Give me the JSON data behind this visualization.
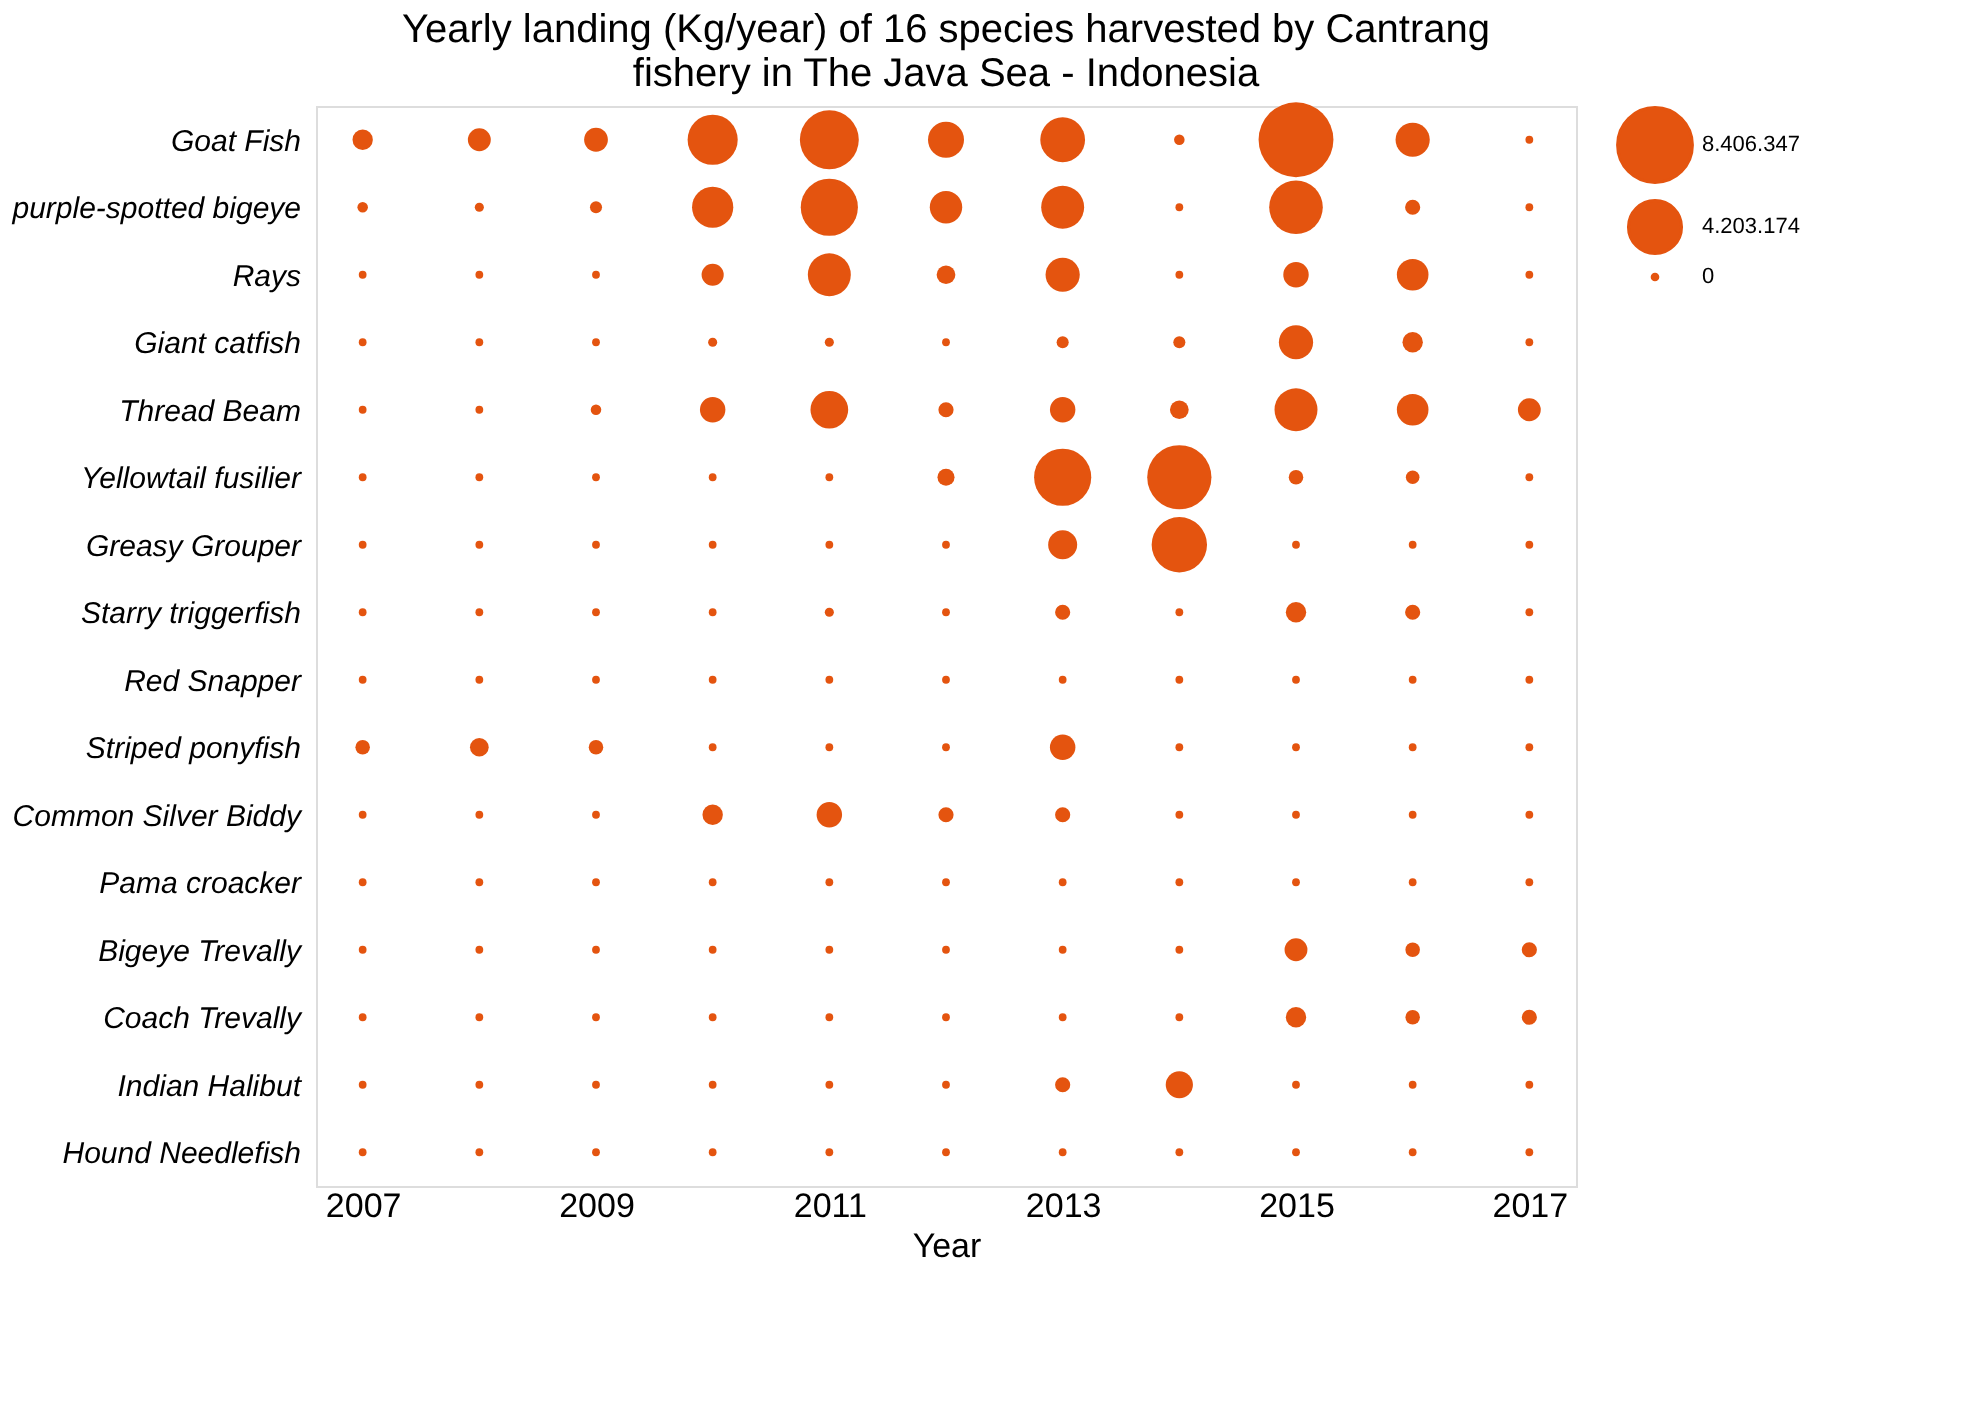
{
  "chart_data": {
    "type": "bubble",
    "title": [
      "Yearly landing (Kg/year) of 16 species harvested by Cantrang",
      "fishery in The Java Sea - Indonesia"
    ],
    "xlabel": "Year",
    "orientation": "horizontal",
    "categories": [
      "Goat Fish",
      "purple-spotted bigeye",
      "Rays",
      "Giant catfish",
      "Thread Beam",
      "Yellowtail fusilier",
      "Greasy Grouper",
      "Starry triggerfish",
      "Red Snapper",
      "Striped ponyfish",
      "Common Silver Biddy",
      "Pama croacker",
      "Bigeye Trevally",
      "Coach Trevally",
      "Indian Halibut",
      "Hound Needlefish"
    ],
    "xlim": [
      2006.6,
      2017.4
    ],
    "xticks": [
      2007,
      2009,
      2011,
      2013,
      2015,
      2017
    ],
    "size_legend": [
      {
        "value": 8406347,
        "label": "8.406.347"
      },
      {
        "value": 4203174,
        "label": "4.203.174"
      },
      {
        "value": 0,
        "label": "0"
      }
    ],
    "grid": false,
    "series": [
      {
        "color": "#e4540f",
        "values": [
          2007,
          2007,
          2007,
          2007,
          2007,
          2007,
          2007,
          2007,
          2007,
          2007,
          2007,
          2007,
          2007,
          2007,
          2007,
          2007
        ],
        "sizes": [
          577000,
          119000,
          43000,
          43000,
          43000,
          43000,
          43000,
          43000,
          43000,
          270000,
          43000,
          43000,
          43000,
          43000,
          43000,
          43000
        ]
      },
      {
        "color": "#e4540f",
        "values": [
          2008,
          2008,
          2008,
          2008,
          2008,
          2008,
          2008,
          2008,
          2008,
          2008,
          2008,
          2008,
          2008,
          2008,
          2008,
          2008
        ],
        "sizes": [
          745000,
          76000,
          43000,
          43000,
          43000,
          43000,
          43000,
          43000,
          43000,
          480000,
          43000,
          43000,
          43000,
          43000,
          43000,
          43000
        ]
      },
      {
        "color": "#e4540f",
        "values": [
          2009,
          2009,
          2009,
          2009,
          2009,
          2009,
          2009,
          2009,
          2009,
          2009,
          2009,
          2009,
          2009,
          2009,
          2009,
          2009
        ],
        "sizes": [
          805000,
          172000,
          43000,
          43000,
          119000,
          43000,
          43000,
          43000,
          43000,
          270000,
          43000,
          43000,
          43000,
          43000,
          43000,
          43000
        ]
      },
      {
        "color": "#e4540f",
        "values": [
          2010,
          2010,
          2010,
          2010,
          2010,
          2010,
          2010,
          2010,
          2010,
          2010,
          2010,
          2010,
          2010,
          2010,
          2010,
          2010
        ],
        "sizes": [
          3740000,
          2520000,
          690000,
          76000,
          930000,
          43000,
          43000,
          43000,
          43000,
          43000,
          580000,
          43000,
          43000,
          43000,
          43000,
          43000
        ]
      },
      {
        "color": "#e4540f",
        "values": [
          2011,
          2011,
          2011,
          2011,
          2011,
          2011,
          2011,
          2011,
          2011,
          2011,
          2011,
          2011,
          2011,
          2011,
          2011,
          2011
        ],
        "sizes": [
          5190000,
          4880000,
          2740000,
          76000,
          2100000,
          43000,
          43000,
          76000,
          43000,
          43000,
          930000,
          43000,
          43000,
          43000,
          43000,
          43000
        ]
      },
      {
        "color": "#e4540f",
        "values": [
          2012,
          2012,
          2012,
          2012,
          2012,
          2012,
          2012,
          2012,
          2012,
          2012,
          2012,
          2012,
          2012,
          2012,
          2012,
          2012
        ],
        "sizes": [
          1910000,
          1540000,
          480000,
          43000,
          300000,
          390000,
          43000,
          43000,
          43000,
          43000,
          300000,
          43000,
          43000,
          43000,
          43000,
          43000
        ]
      },
      {
        "color": "#e4540f",
        "values": [
          2013,
          2013,
          2013,
          2013,
          2013,
          2013,
          2013,
          2013,
          2013,
          2013,
          2013,
          2013,
          2013,
          2013,
          2013,
          2013
        ],
        "sizes": [
          2980000,
          2740000,
          1720000,
          172000,
          930000,
          4880000,
          1220000,
          300000,
          43000,
          930000,
          300000,
          43000,
          43000,
          43000,
          300000,
          43000
        ]
      },
      {
        "color": "#e4540f",
        "values": [
          2014,
          2014,
          2014,
          2014,
          2014,
          2014,
          2014,
          2014,
          2014,
          2014,
          2014,
          2014,
          2014,
          2014,
          2014,
          2014
        ],
        "sizes": [
          119000,
          43000,
          43000,
          172000,
          480000,
          6180000,
          4580000,
          43000,
          43000,
          43000,
          43000,
          43000,
          43000,
          43000,
          1070000,
          43000
        ]
      },
      {
        "color": "#e4540f",
        "values": [
          2015,
          2015,
          2015,
          2015,
          2015,
          2015,
          2015,
          2015,
          2015,
          2015,
          2015,
          2015,
          2015,
          2015,
          2015,
          2015
        ],
        "sizes": [
          8406347,
          4290000,
          930000,
          1720000,
          2740000,
          270000,
          43000,
          580000,
          43000,
          43000,
          43000,
          43000,
          740000,
          580000,
          43000,
          43000
        ]
      },
      {
        "color": "#e4540f",
        "values": [
          2016,
          2016,
          2016,
          2016,
          2016,
          2016,
          2016,
          2016,
          2016,
          2016,
          2016,
          2016,
          2016,
          2016,
          2016,
          2016
        ],
        "sizes": [
          1720000,
          300000,
          1460000,
          580000,
          1460000,
          230000,
          43000,
          300000,
          43000,
          43000,
          43000,
          43000,
          270000,
          270000,
          43000,
          43000
        ]
      },
      {
        "color": "#e4540f",
        "values": [
          2017,
          2017,
          2017,
          2017,
          2017,
          2017,
          2017,
          2017,
          2017,
          2017,
          2017,
          2017,
          2017,
          2017,
          2017,
          2017
        ],
        "sizes": [
          43000,
          43000,
          43000,
          43000,
          740000,
          43000,
          43000,
          43000,
          43000,
          43000,
          43000,
          43000,
          300000,
          300000,
          43000,
          43000
        ]
      }
    ]
  }
}
